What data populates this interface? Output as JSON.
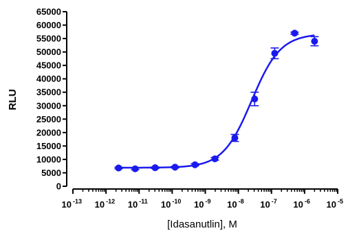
{
  "chart_data": {
    "type": "scatter",
    "title": "",
    "xlabel": "[Idasanutlin], M",
    "ylabel": "RLU",
    "x_scale": "log10",
    "xlim": [
      1e-13,
      1e-05
    ],
    "ylim": [
      0,
      65000
    ],
    "x_tick_labels": [
      {
        "base": "10",
        "exp": "-13"
      },
      {
        "base": "10",
        "exp": "-12"
      },
      {
        "base": "10",
        "exp": "-11"
      },
      {
        "base": "10",
        "exp": "-10"
      },
      {
        "base": "10",
        "exp": "-9"
      },
      {
        "base": "10",
        "exp": "-8"
      },
      {
        "base": "10",
        "exp": "-7"
      },
      {
        "base": "10",
        "exp": "-6"
      },
      {
        "base": "10",
        "exp": "-5"
      }
    ],
    "y_ticks": [
      0,
      5000,
      10000,
      15000,
      20000,
      25000,
      30000,
      35000,
      40000,
      45000,
      50000,
      55000,
      60000,
      65000
    ],
    "grid": false,
    "color": "#1a1aee",
    "series": [
      {
        "points": [
          {
            "x": 2.4e-12,
            "y": 6800,
            "err": 300
          },
          {
            "x": 7.6e-12,
            "y": 6500,
            "err": 300
          },
          {
            "x": 3.05e-11,
            "y": 6900,
            "err": 300
          },
          {
            "x": 1.22e-10,
            "y": 7100,
            "err": 300
          },
          {
            "x": 4.88e-10,
            "y": 8000,
            "err": 400
          },
          {
            "x": 1.95e-09,
            "y": 10200,
            "err": 500
          },
          {
            "x": 7.8e-09,
            "y": 18000,
            "err": 1300
          },
          {
            "x": 3.1e-08,
            "y": 32500,
            "err": 2500
          },
          {
            "x": 1.25e-07,
            "y": 49500,
            "err": 2000
          },
          {
            "x": 5e-07,
            "y": 57000,
            "err": 400
          },
          {
            "x": 2e-06,
            "y": 54000,
            "err": 1700
          }
        ],
        "fit": {
          "model": "4PL",
          "bottom": 6900,
          "top": 56800,
          "log_ec50": -7.6,
          "hill": 1.0
        }
      }
    ]
  }
}
